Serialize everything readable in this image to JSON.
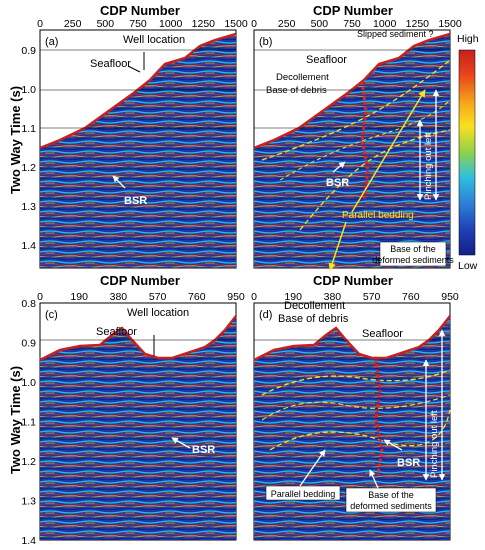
{
  "axes": {
    "top_title": "CDP Number",
    "bottom_title": "CDP Number",
    "ylabel": "Two Way Time (s)",
    "top_xticks": [
      "0",
      "250",
      "500",
      "750",
      "1000",
      "1250",
      "1500"
    ],
    "bottom_xticks": [
      "0",
      "190",
      "380",
      "570",
      "760",
      "950"
    ],
    "top_yticks": [
      "0.9",
      "1.0",
      "1.1",
      "1.2",
      "1.3",
      "1.4"
    ],
    "bottom_yticks": [
      "0.8",
      "0.9",
      "1.0",
      "1.1",
      "1.2",
      "1.3",
      "1.4"
    ]
  },
  "colorbar": {
    "high": "High",
    "low": "Low",
    "colors": [
      "#c8201c",
      "#e8431c",
      "#f4a21a",
      "#fbe01d",
      "#8fd14a",
      "#2fbfe0",
      "#2d7fd6",
      "#1f3fb4",
      "#141f88"
    ]
  },
  "panels": {
    "a": {
      "label": "(a)",
      "well_location": "Well location",
      "seafloor": "Seafloor",
      "bsr": "BSR"
    },
    "b": {
      "label": "(b)",
      "slipped": "Slipped sediment ?",
      "seafloor": "Seafloor",
      "decollement": "Decollement",
      "base_debris": "Base of debris",
      "bsr": "BSR",
      "parallel_bedding": "Parallel bedding",
      "base_deformed_1": "Base of the",
      "base_deformed_2": "deformed sediments",
      "pinching": "Pinching out left"
    },
    "c": {
      "label": "(c)",
      "well_location": "Well location",
      "seafloor": "Seafloor",
      "bsr": "BSR"
    },
    "d": {
      "label": "(d)",
      "decollement": "Decollement",
      "base_debris": "Base of debris",
      "seafloor": "Seafloor",
      "bsr": "BSR",
      "parallel_bedding": "Parallel bedding",
      "base_deformed_1": "Base of the",
      "base_deformed_2": "deformed sediments",
      "pinching": "Pinching out left"
    }
  }
}
